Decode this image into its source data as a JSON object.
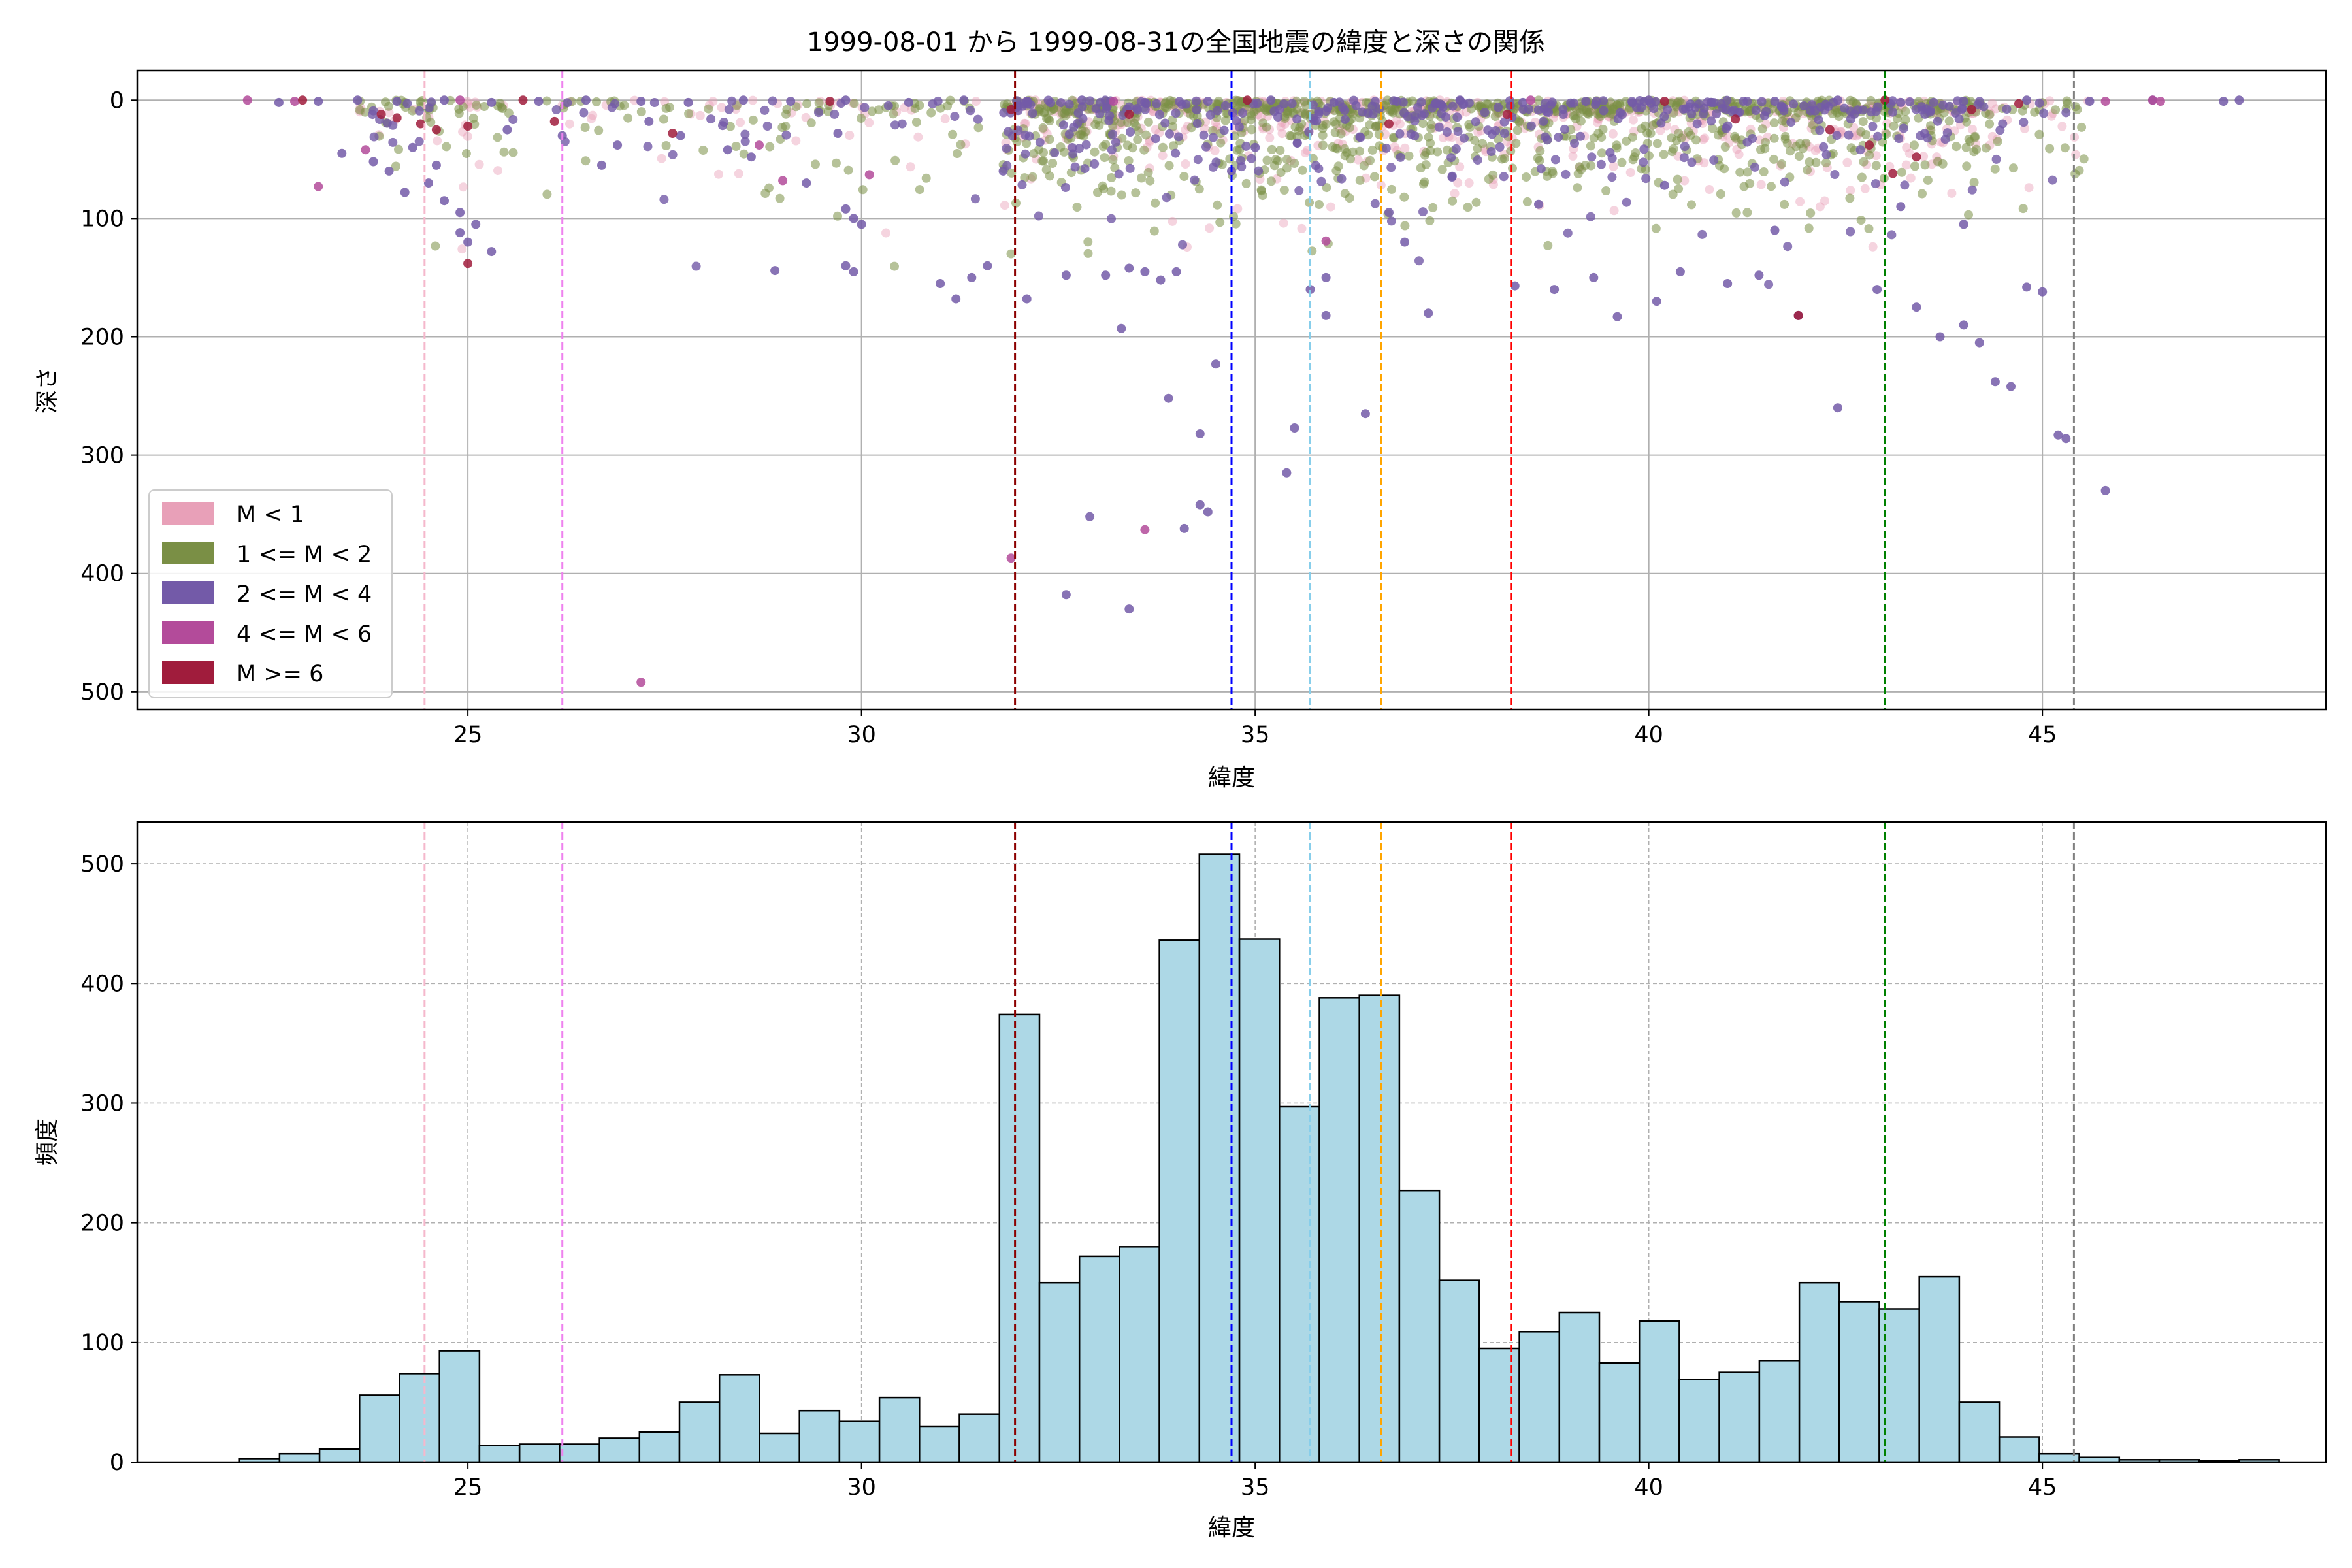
{
  "title": "1999-08-01 から 1999-08-31の全国地震の緯度と深さの関係",
  "colors": {
    "m_lt1": "#e8a0b8",
    "m_1to2": "#7a8f45",
    "m_2to4": "#735aa8",
    "m_4to6": "#b34b9a",
    "m_ge6": "#a01c3c",
    "hist_fill": "#add8e6"
  },
  "chart_data": [
    {
      "type": "scatter",
      "xlabel": "緯度",
      "ylabel": "深さ",
      "xlim": [
        20.8,
        48.6
      ],
      "ylim": [
        515,
        -25
      ],
      "y_inverted": true,
      "xticks": [
        25,
        30,
        35,
        40,
        45
      ],
      "yticks": [
        0,
        100,
        200,
        300,
        400,
        500
      ],
      "grid": true,
      "legend": {
        "placement": "lower-left",
        "entries": [
          {
            "label": "M < 1",
            "color": "#e8a0b8"
          },
          {
            "label": "1 <= M < 2",
            "color": "#7a8f45"
          },
          {
            "label": "2 <= M < 4",
            "color": "#735aa8"
          },
          {
            "label": "4 <= M < 6",
            "color": "#b34b9a"
          },
          {
            "label": "M >= 6",
            "color": "#a01c3c"
          }
        ]
      },
      "series": [
        {
          "class": "2 <= M < 4",
          "points": [
            [
              23.4,
              45
            ],
            [
              23.8,
              52
            ],
            [
              24.2,
              78
            ],
            [
              24.5,
              70
            ],
            [
              24.7,
              85
            ],
            [
              24.9,
              95
            ],
            [
              24.9,
              112
            ],
            [
              25.0,
              120
            ],
            [
              25.1,
              105
            ],
            [
              25.3,
              128
            ],
            [
              24.0,
              60
            ],
            [
              24.3,
              40
            ],
            [
              24.6,
              55
            ],
            [
              25.5,
              25
            ],
            [
              26.2,
              30
            ],
            [
              26.7,
              55
            ],
            [
              26.9,
              38
            ],
            [
              27.3,
              18
            ],
            [
              27.7,
              30
            ],
            [
              28.3,
              42
            ],
            [
              28.6,
              48
            ],
            [
              28.9,
              144
            ],
            [
              29.3,
              70
            ],
            [
              29.7,
              28
            ],
            [
              29.8,
              92
            ],
            [
              29.9,
              100
            ],
            [
              29.8,
              140
            ],
            [
              29.9,
              145
            ],
            [
              30.0,
              105
            ],
            [
              31.0,
              155
            ],
            [
              31.2,
              168
            ],
            [
              31.4,
              150
            ],
            [
              31.6,
              140
            ],
            [
              31.8,
              60
            ],
            [
              32.1,
              168
            ],
            [
              32.6,
              148
            ],
            [
              32.9,
              352
            ],
            [
              33.1,
              148
            ],
            [
              33.4,
              142
            ],
            [
              33.3,
              193
            ],
            [
              33.6,
              145
            ],
            [
              33.8,
              152
            ],
            [
              33.9,
              252
            ],
            [
              34.0,
              145
            ],
            [
              34.1,
              362
            ],
            [
              34.3,
              342
            ],
            [
              34.3,
              282
            ],
            [
              34.4,
              348
            ],
            [
              34.5,
              223
            ],
            [
              34.7,
              60
            ],
            [
              35.0,
              40
            ],
            [
              35.4,
              315
            ],
            [
              35.5,
              277
            ],
            [
              35.7,
              160
            ],
            [
              35.9,
              182
            ],
            [
              36.4,
              265
            ],
            [
              36.9,
              120
            ],
            [
              37.2,
              180
            ],
            [
              38.3,
              157
            ],
            [
              38.8,
              160
            ],
            [
              39.3,
              150
            ],
            [
              39.6,
              183
            ],
            [
              40.1,
              170
            ],
            [
              40.4,
              145
            ],
            [
              41.0,
              155
            ],
            [
              41.4,
              148
            ],
            [
              41.9,
              182
            ],
            [
              42.4,
              260
            ],
            [
              42.9,
              160
            ],
            [
              43.4,
              175
            ],
            [
              43.7,
              200
            ],
            [
              44.0,
              190
            ],
            [
              44.2,
              205
            ],
            [
              44.4,
              238
            ],
            [
              44.6,
              242
            ],
            [
              44.8,
              158
            ],
            [
              45.0,
              162
            ],
            [
              45.2,
              283
            ],
            [
              45.3,
              286
            ],
            [
              45.8,
              330
            ],
            [
              32.6,
              418
            ],
            [
              33.4,
              430
            ],
            [
              35.9,
              150
            ],
            [
              36.7,
              95
            ],
            [
              37.5,
              65
            ],
            [
              38.6,
              88
            ],
            [
              40.2,
              72
            ],
            [
              41.6,
              110
            ],
            [
              43.2,
              90
            ],
            [
              44.0,
              105
            ],
            [
              22.6,
              2
            ],
            [
              23.1,
              1
            ],
            [
              23.6,
              0
            ],
            [
              24.1,
              1
            ],
            [
              24.7,
              0
            ],
            [
              25.3,
              2
            ],
            [
              25.9,
              1
            ],
            [
              26.5,
              0
            ],
            [
              27.2,
              1
            ],
            [
              27.8,
              2
            ],
            [
              28.5,
              0
            ],
            [
              29.1,
              1
            ],
            [
              29.8,
              0
            ],
            [
              30.6,
              2
            ],
            [
              31.3,
              0
            ],
            [
              32.1,
              1
            ],
            [
              32.8,
              0
            ],
            [
              33.6,
              2
            ],
            [
              34.4,
              1
            ],
            [
              35.2,
              0
            ],
            [
              36.0,
              2
            ],
            [
              36.8,
              1
            ],
            [
              37.6,
              0
            ],
            [
              38.4,
              2
            ],
            [
              39.2,
              1
            ],
            [
              40.0,
              0
            ],
            [
              40.8,
              2
            ],
            [
              41.6,
              1
            ],
            [
              42.4,
              0
            ],
            [
              43.2,
              2
            ],
            [
              44.0,
              1
            ],
            [
              44.8,
              0
            ],
            [
              45.6,
              1
            ],
            [
              46.4,
              0
            ],
            [
              47.3,
              1
            ],
            [
              47.5,
              0
            ]
          ]
        },
        {
          "class": "4 <= M < 6",
          "points": [
            [
              23.1,
              73
            ],
            [
              23.7,
              42
            ],
            [
              28.7,
              38
            ],
            [
              29.0,
              68
            ],
            [
              30.1,
              63
            ],
            [
              33.6,
              363
            ],
            [
              35.9,
              119
            ],
            [
              31.9,
              387
            ],
            [
              27.2,
              492
            ],
            [
              22.2,
              0
            ],
            [
              22.8,
              1
            ],
            [
              24.9,
              0
            ],
            [
              33.2,
              1
            ],
            [
              38.5,
              0
            ],
            [
              45.8,
              1
            ],
            [
              46.4,
              0
            ],
            [
              46.5,
              1
            ]
          ]
        },
        {
          "class": "M >= 6",
          "points": [
            [
              23.9,
              12
            ],
            [
              24.1,
              15
            ],
            [
              24.4,
              20
            ],
            [
              24.6,
              25
            ],
            [
              25.0,
              138
            ],
            [
              25.0,
              22
            ],
            [
              26.1,
              18
            ],
            [
              27.6,
              28
            ],
            [
              31.9,
              8
            ],
            [
              33.4,
              12
            ],
            [
              36.7,
              20
            ],
            [
              38.2,
              12
            ],
            [
              41.1,
              16
            ],
            [
              41.9,
              182
            ],
            [
              42.3,
              25
            ],
            [
              42.8,
              38
            ],
            [
              43.1,
              62
            ],
            [
              43.4,
              48
            ],
            [
              44.1,
              8
            ],
            [
              44.7,
              3
            ],
            [
              22.9,
              0
            ],
            [
              25.7,
              0
            ],
            [
              29.6,
              1
            ],
            [
              34.9,
              0
            ],
            [
              40.2,
              1
            ],
            [
              43.0,
              0
            ]
          ]
        }
      ]
    },
    {
      "type": "bar",
      "subtype": "histogram",
      "xlabel": "緯度",
      "ylabel": "頻度",
      "xlim": [
        20.8,
        48.6
      ],
      "ylim": [
        0,
        535
      ],
      "xticks": [
        25,
        30,
        35,
        40,
        45
      ],
      "yticks": [
        0,
        100,
        200,
        300,
        400,
        500
      ],
      "grid": true,
      "bin_start": 22.1,
      "bin_width": 0.508,
      "values": [
        3,
        7,
        11,
        56,
        74,
        93,
        14,
        15,
        15,
        20,
        25,
        50,
        73,
        24,
        43,
        34,
        54,
        30,
        40,
        374,
        150,
        172,
        180,
        436,
        508,
        437,
        297,
        388,
        390,
        227,
        152,
        95,
        109,
        125,
        83,
        118,
        69,
        75,
        85,
        150,
        134,
        128,
        155,
        50,
        21,
        7,
        4,
        2,
        2,
        1,
        2
      ]
    }
  ],
  "reference_lines": [
    {
      "x": 24.45,
      "color": "#f5b8cc"
    },
    {
      "x": 26.2,
      "color": "#ee82ee"
    },
    {
      "x": 31.95,
      "color": "#8b0000"
    },
    {
      "x": 34.7,
      "color": "#0000ff"
    },
    {
      "x": 35.7,
      "color": "#87ceeb"
    },
    {
      "x": 36.6,
      "color": "#ffa500"
    },
    {
      "x": 38.25,
      "color": "#ff0000"
    },
    {
      "x": 43.0,
      "color": "#008000"
    },
    {
      "x": 45.4,
      "color": "#808080"
    }
  ]
}
